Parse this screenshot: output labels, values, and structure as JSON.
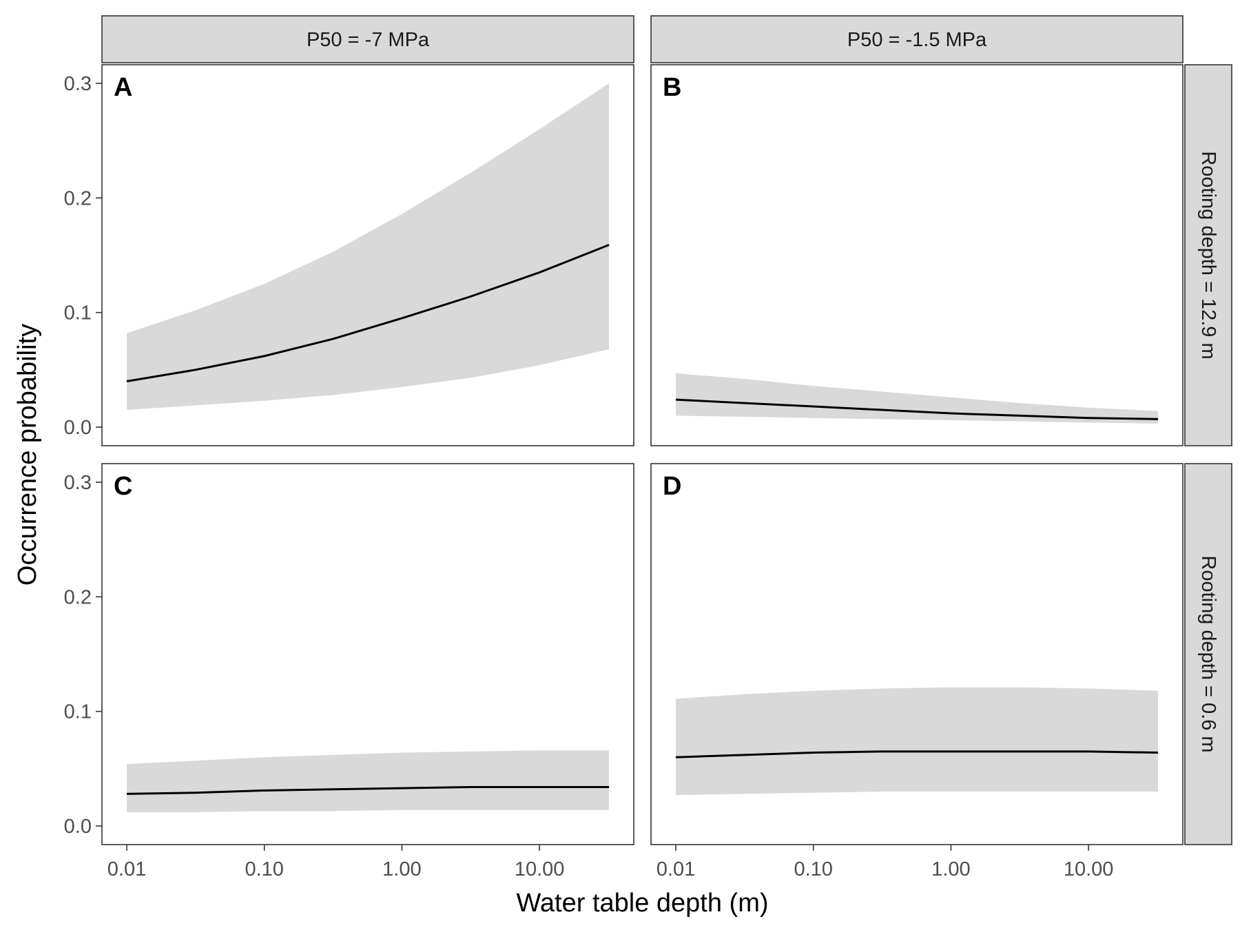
{
  "figure": {
    "xlabel": "Water table depth (m)",
    "ylabel": "Occurrence probability",
    "col_strips": [
      "P50 = -7 MPa",
      "P50 = -1.5 MPa"
    ],
    "row_strips": [
      "Rooting depth = 12.9 m",
      "Rooting depth = 0.6 m"
    ],
    "panel_bg": "#ffffff",
    "strip_bg": "#d9d9d9",
    "ribbon_color": "#d9d9d9",
    "line_color": "#000000",
    "frame_color": "#333333",
    "tick_color": "#4d4d4d"
  },
  "chart_data": [
    {
      "type": "line",
      "panel": "A",
      "column": "P50 = -7 MPa",
      "row": "Rooting depth = 12.9 m",
      "x_scale": "log",
      "xlim": [
        0.01,
        32
      ],
      "ylim": [
        0.0,
        0.3
      ],
      "x_ticks": [
        0.01,
        0.1,
        1,
        10
      ],
      "x_tick_labels": [
        "0.01",
        "0.10",
        "1.00",
        "10.00"
      ],
      "y_ticks": [
        0,
        0.1,
        0.2,
        0.3
      ],
      "y_tick_labels": [
        "0.0",
        "0.1",
        "0.2",
        "0.3"
      ],
      "x": [
        0.01,
        0.0316,
        0.1,
        0.316,
        1,
        3.16,
        10,
        32
      ],
      "y": [
        0.04,
        0.05,
        0.062,
        0.077,
        0.095,
        0.114,
        0.135,
        0.159
      ],
      "lower": [
        0.015,
        0.019,
        0.023,
        0.028,
        0.035,
        0.043,
        0.054,
        0.068
      ],
      "upper": [
        0.082,
        0.102,
        0.125,
        0.153,
        0.186,
        0.222,
        0.26,
        0.3
      ]
    },
    {
      "type": "line",
      "panel": "B",
      "column": "P50 = -1.5 MPa",
      "row": "Rooting depth = 12.9 m",
      "x_scale": "log",
      "xlim": [
        0.01,
        32
      ],
      "ylim": [
        0.0,
        0.3
      ],
      "x_ticks": [
        0.01,
        0.1,
        1,
        10
      ],
      "x_tick_labels": [
        "0.01",
        "0.10",
        "1.00",
        "10.00"
      ],
      "y_ticks": [
        0,
        0.1,
        0.2,
        0.3
      ],
      "y_tick_labels": [
        "0.0",
        "0.1",
        "0.2",
        "0.3"
      ],
      "x": [
        0.01,
        0.0316,
        0.1,
        0.316,
        1,
        3.16,
        10,
        32
      ],
      "y": [
        0.024,
        0.021,
        0.018,
        0.015,
        0.012,
        0.01,
        0.008,
        0.007
      ],
      "lower": [
        0.01,
        0.009,
        0.008,
        0.007,
        0.006,
        0.005,
        0.004,
        0.003
      ],
      "upper": [
        0.047,
        0.042,
        0.036,
        0.031,
        0.026,
        0.021,
        0.017,
        0.014
      ]
    },
    {
      "type": "line",
      "panel": "C",
      "column": "P50 = -7 MPa",
      "row": "Rooting depth = 0.6 m",
      "x_scale": "log",
      "xlim": [
        0.01,
        32
      ],
      "ylim": [
        0.0,
        0.3
      ],
      "x_ticks": [
        0.01,
        0.1,
        1,
        10
      ],
      "x_tick_labels": [
        "0.01",
        "0.10",
        "1.00",
        "10.00"
      ],
      "y_ticks": [
        0,
        0.1,
        0.2,
        0.3
      ],
      "y_tick_labels": [
        "0.0",
        "0.1",
        "0.2",
        "0.3"
      ],
      "x": [
        0.01,
        0.0316,
        0.1,
        0.316,
        1,
        3.16,
        10,
        32
      ],
      "y": [
        0.028,
        0.029,
        0.031,
        0.032,
        0.033,
        0.034,
        0.034,
        0.034
      ],
      "lower": [
        0.012,
        0.012,
        0.013,
        0.013,
        0.014,
        0.014,
        0.014,
        0.014
      ],
      "upper": [
        0.054,
        0.057,
        0.06,
        0.062,
        0.064,
        0.065,
        0.066,
        0.066
      ]
    },
    {
      "type": "line",
      "panel": "D",
      "column": "P50 = -1.5 MPa",
      "row": "Rooting depth = 0.6 m",
      "x_scale": "log",
      "xlim": [
        0.01,
        32
      ],
      "ylim": [
        0.0,
        0.3
      ],
      "x_ticks": [
        0.01,
        0.1,
        1,
        10
      ],
      "x_tick_labels": [
        "0.01",
        "0.10",
        "1.00",
        "10.00"
      ],
      "y_ticks": [
        0,
        0.1,
        0.2,
        0.3
      ],
      "y_tick_labels": [
        "0.0",
        "0.1",
        "0.2",
        "0.3"
      ],
      "x": [
        0.01,
        0.0316,
        0.1,
        0.316,
        1,
        3.16,
        10,
        32
      ],
      "y": [
        0.06,
        0.062,
        0.064,
        0.065,
        0.065,
        0.065,
        0.065,
        0.064
      ],
      "lower": [
        0.027,
        0.028,
        0.029,
        0.03,
        0.03,
        0.03,
        0.03,
        0.03
      ],
      "upper": [
        0.111,
        0.115,
        0.118,
        0.12,
        0.121,
        0.121,
        0.12,
        0.118
      ]
    }
  ]
}
